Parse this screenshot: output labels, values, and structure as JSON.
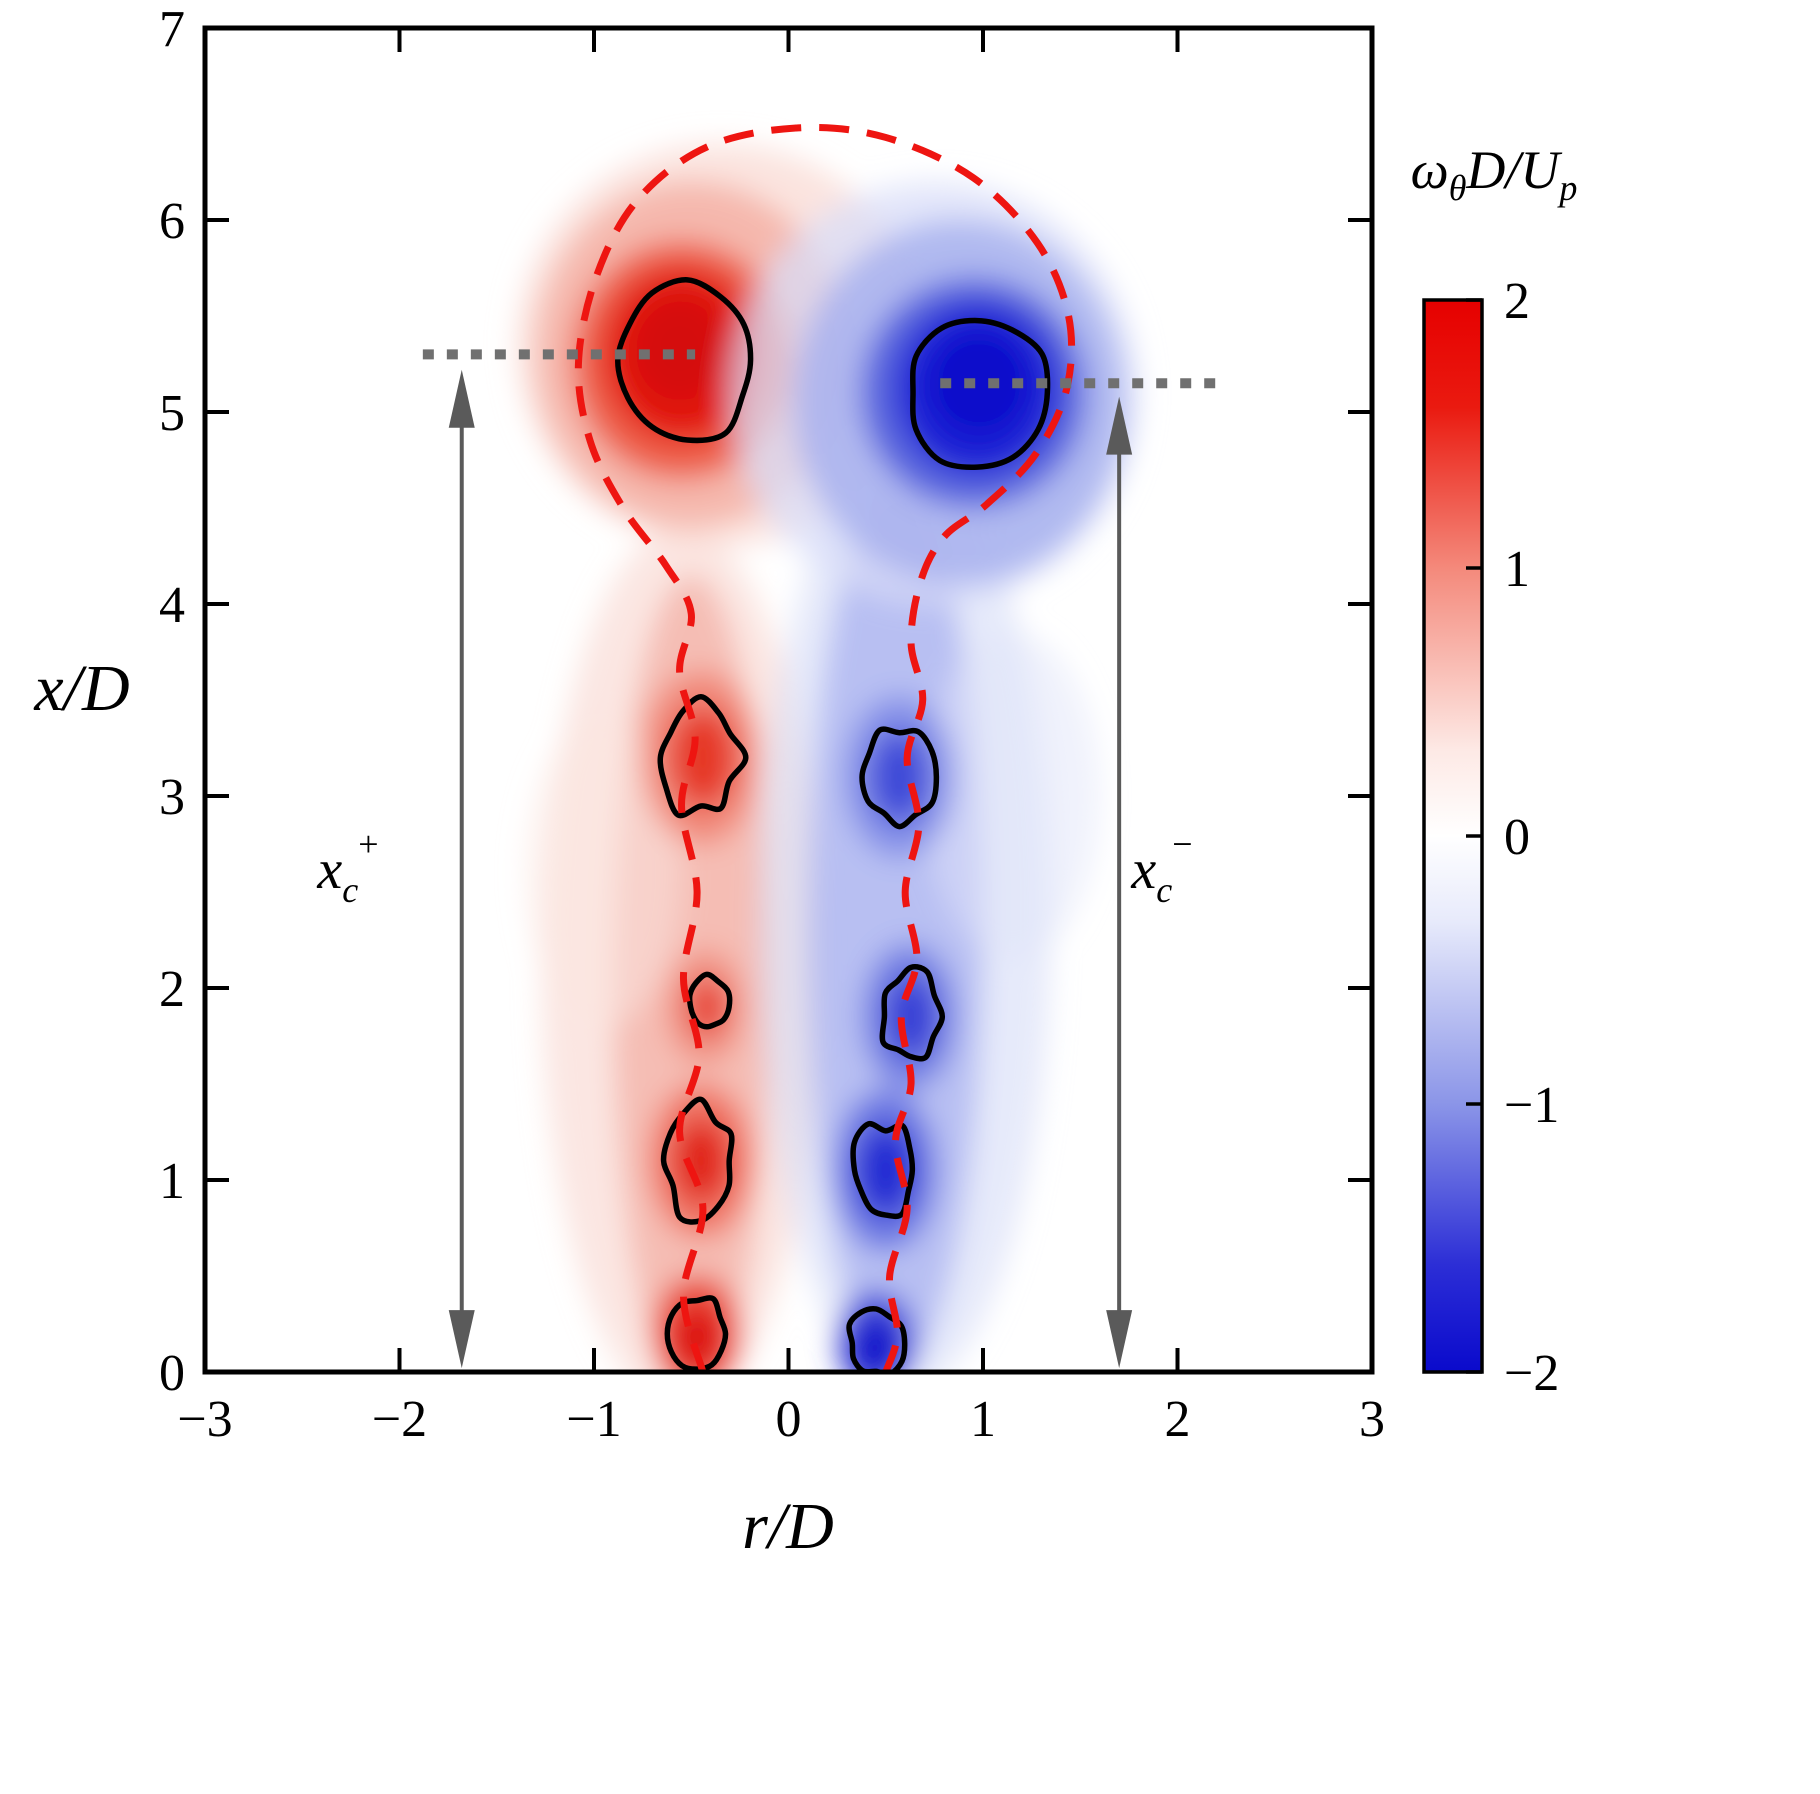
{
  "chart_data": {
    "type": "heatmap",
    "title": "",
    "xlabel": "r/D",
    "ylabel": "x/D",
    "xlim": [
      -3,
      3
    ],
    "ylim": [
      0,
      7
    ],
    "grid": false,
    "x_ticks": [
      {
        "v": -3,
        "label": "−3"
      },
      {
        "v": -2,
        "label": "−2"
      },
      {
        "v": -1,
        "label": "−1"
      },
      {
        "v": 0,
        "label": "0"
      },
      {
        "v": 1,
        "label": "1"
      },
      {
        "v": 2,
        "label": "2"
      },
      {
        "v": 3,
        "label": "3"
      }
    ],
    "y_ticks": [
      {
        "v": 0,
        "label": "0"
      },
      {
        "v": 1,
        "label": "1"
      },
      {
        "v": 2,
        "label": "2"
      },
      {
        "v": 3,
        "label": "3"
      },
      {
        "v": 4,
        "label": "4"
      },
      {
        "v": 5,
        "label": "5"
      },
      {
        "v": 6,
        "label": "6"
      },
      {
        "v": 7,
        "label": "7"
      }
    ],
    "colorbar": {
      "label_text": "ωθD/Up",
      "label_parts": {
        "omega": "ω",
        "theta": "θ",
        "mid": "D/U",
        "sub": "p"
      },
      "min": -2,
      "max": 2,
      "ticks": [
        {
          "v": 2,
          "label": "2"
        },
        {
          "v": 1,
          "label": "1"
        },
        {
          "v": 0,
          "label": "0"
        },
        {
          "v": -1,
          "label": "−1"
        },
        {
          "v": -2,
          "label": "−2"
        }
      ],
      "gradient": [
        {
          "offset": 0.0,
          "color": "#e60000"
        },
        {
          "offset": 0.1,
          "color": "#ea1a10"
        },
        {
          "offset": 0.25,
          "color": "#f4897b"
        },
        {
          "offset": 0.42,
          "color": "#fde9e5"
        },
        {
          "offset": 0.5,
          "color": "#ffffff"
        },
        {
          "offset": 0.58,
          "color": "#e7eafb"
        },
        {
          "offset": 0.75,
          "color": "#8b95e8"
        },
        {
          "offset": 0.9,
          "color": "#2c2ed6"
        },
        {
          "offset": 1.0,
          "color": "#0a0acc"
        }
      ]
    },
    "colors": {
      "positive_peak": "#d50b0b",
      "negative_peak": "#0a0ccb",
      "boundary": "#ee1511",
      "contour": "#000000",
      "annotation_arrow": "#5a5a5a",
      "dotted_line": "#707070"
    },
    "field_blobs": [
      {
        "r": -0.55,
        "x": 2.1,
        "rx": 0.72,
        "ry": 2.3,
        "fill": "#f8d2ca",
        "opacity": 0.55
      },
      {
        "r": -0.5,
        "x": 2.0,
        "rx": 0.4,
        "ry": 2.15,
        "fill": "#f2a296",
        "opacity": 0.6
      },
      {
        "r": -0.95,
        "x": 2.6,
        "rx": 0.4,
        "ry": 0.8,
        "fill": "#fbe7e2",
        "opacity": 0.5
      },
      {
        "r": -0.35,
        "x": 5.35,
        "rx": 1.05,
        "ry": 1.05,
        "fill": "#fadbd4",
        "opacity": 0.75
      },
      {
        "r": -0.5,
        "x": 5.3,
        "rx": 0.8,
        "ry": 0.9,
        "fill": "#f5b2a5",
        "opacity": 0.85
      },
      {
        "r": -0.55,
        "x": 5.27,
        "rx": 0.56,
        "ry": 0.62,
        "fill": "#ee5a45",
        "opacity": 0.95
      },
      {
        "r": -0.55,
        "x": 5.3,
        "rx": 0.4,
        "ry": 0.45,
        "fill": "#e21511",
        "opacity": 1
      },
      {
        "r": -0.56,
        "x": 5.33,
        "rx": 0.24,
        "ry": 0.27,
        "fill": "#d50b0b",
        "opacity": 1
      },
      {
        "r": -0.45,
        "x": 3.2,
        "rx": 0.3,
        "ry": 0.45,
        "fill": "#f08070",
        "opacity": 0.85
      },
      {
        "r": -0.44,
        "x": 3.2,
        "rx": 0.17,
        "ry": 0.26,
        "fill": "#e53020",
        "opacity": 0.9
      },
      {
        "r": -0.43,
        "x": 1.9,
        "rx": 0.2,
        "ry": 0.3,
        "fill": "#f08a7a",
        "opacity": 0.8
      },
      {
        "r": -0.42,
        "x": 1.9,
        "rx": 0.1,
        "ry": 0.15,
        "fill": "#e63525",
        "opacity": 0.9
      },
      {
        "r": -0.45,
        "x": 1.1,
        "rx": 0.26,
        "ry": 0.4,
        "fill": "#ee6a58",
        "opacity": 0.85
      },
      {
        "r": -0.45,
        "x": 1.1,
        "rx": 0.14,
        "ry": 0.22,
        "fill": "#e02015",
        "opacity": 0.95
      },
      {
        "r": -0.47,
        "x": 0.2,
        "rx": 0.22,
        "ry": 0.3,
        "fill": "#ea4233",
        "opacity": 0.9
      },
      {
        "r": -0.47,
        "x": 0.18,
        "rx": 0.13,
        "ry": 0.17,
        "fill": "#dd0f08",
        "opacity": 1
      },
      {
        "r": 0.6,
        "x": 2.35,
        "rx": 0.75,
        "ry": 2.45,
        "fill": "#d2d8f6",
        "opacity": 0.55
      },
      {
        "r": 0.55,
        "x": 2.3,
        "rx": 0.45,
        "ry": 2.3,
        "fill": "#9aa4ec",
        "opacity": 0.6
      },
      {
        "r": 1.15,
        "x": 3.0,
        "rx": 0.45,
        "ry": 0.85,
        "fill": "#e2e6fa",
        "opacity": 0.5
      },
      {
        "r": 0.75,
        "x": 5.1,
        "rx": 1.05,
        "ry": 1.1,
        "fill": "#dadef8",
        "opacity": 0.75
      },
      {
        "r": 0.88,
        "x": 5.05,
        "rx": 0.85,
        "ry": 0.95,
        "fill": "#a8b1ee",
        "opacity": 0.85
      },
      {
        "r": 0.95,
        "x": 5.1,
        "rx": 0.58,
        "ry": 0.6,
        "fill": "#5361dd",
        "opacity": 0.95
      },
      {
        "r": 0.97,
        "x": 5.12,
        "rx": 0.42,
        "ry": 0.45,
        "fill": "#1b22d5",
        "opacity": 1
      },
      {
        "r": 0.98,
        "x": 5.15,
        "rx": 0.26,
        "ry": 0.28,
        "fill": "#0a0ccb",
        "opacity": 1
      },
      {
        "r": 0.57,
        "x": 3.1,
        "rx": 0.28,
        "ry": 0.42,
        "fill": "#7d88e6",
        "opacity": 0.85
      },
      {
        "r": 0.57,
        "x": 3.1,
        "rx": 0.15,
        "ry": 0.24,
        "fill": "#3640d7",
        "opacity": 0.9
      },
      {
        "r": 0.62,
        "x": 1.85,
        "rx": 0.24,
        "ry": 0.38,
        "fill": "#6c78e2",
        "opacity": 0.85
      },
      {
        "r": 0.63,
        "x": 1.85,
        "rx": 0.13,
        "ry": 0.22,
        "fill": "#2d36d5",
        "opacity": 0.9
      },
      {
        "r": 0.5,
        "x": 1.05,
        "rx": 0.26,
        "ry": 0.42,
        "fill": "#5d6ae0",
        "opacity": 0.85
      },
      {
        "r": 0.5,
        "x": 1.05,
        "rx": 0.15,
        "ry": 0.24,
        "fill": "#1f28d2",
        "opacity": 0.95
      },
      {
        "r": 0.45,
        "x": 0.15,
        "rx": 0.2,
        "ry": 0.27,
        "fill": "#3a42d8",
        "opacity": 0.9
      },
      {
        "r": 0.45,
        "x": 0.13,
        "rx": 0.12,
        "ry": 0.15,
        "fill": "#0a0cca",
        "opacity": 1
      }
    ],
    "core_contours": [
      {
        "r": -0.52,
        "x": 5.27,
        "rx": 0.36,
        "ry": 0.4,
        "wobble": 0.1,
        "seed": 7
      },
      {
        "r": 0.97,
        "x": 5.1,
        "rx": 0.36,
        "ry": 0.38,
        "wobble": 0.1,
        "seed": 11
      },
      {
        "r": -0.45,
        "x": 3.2,
        "rx": 0.21,
        "ry": 0.31,
        "wobble": 0.22,
        "seed": 3
      },
      {
        "r": 0.57,
        "x": 3.1,
        "rx": 0.18,
        "ry": 0.25,
        "wobble": 0.15,
        "seed": 5
      },
      {
        "r": -0.42,
        "x": 1.9,
        "rx": 0.11,
        "ry": 0.14,
        "wobble": 0.3,
        "seed": 13
      },
      {
        "r": 0.63,
        "x": 1.85,
        "rx": 0.15,
        "ry": 0.24,
        "wobble": 0.2,
        "seed": 17
      },
      {
        "r": -0.45,
        "x": 1.1,
        "rx": 0.18,
        "ry": 0.28,
        "wobble": 0.22,
        "seed": 19
      },
      {
        "r": 0.5,
        "x": 1.05,
        "rx": 0.16,
        "ry": 0.25,
        "wobble": 0.18,
        "seed": 23
      },
      {
        "r": -0.47,
        "x": 0.2,
        "rx": 0.16,
        "ry": 0.2,
        "wobble": 0.15,
        "seed": 29
      },
      {
        "r": 0.45,
        "x": 0.15,
        "rx": 0.14,
        "ry": 0.17,
        "wobble": 0.15,
        "seed": 31
      }
    ],
    "jet_boundary": {
      "points": [
        [
          -0.44,
          0
        ],
        [
          -0.54,
          0.4
        ],
        [
          -0.44,
          0.85
        ],
        [
          -0.56,
          1.25
        ],
        [
          -0.46,
          1.65
        ],
        [
          -0.54,
          2.05
        ],
        [
          -0.47,
          2.5
        ],
        [
          -0.55,
          2.95
        ],
        [
          -0.48,
          3.3
        ],
        [
          -0.56,
          3.65
        ],
        [
          -0.5,
          3.95
        ],
        [
          -0.63,
          4.2
        ],
        [
          -0.85,
          4.5
        ],
        [
          -1.02,
          4.85
        ],
        [
          -1.08,
          5.25
        ],
        [
          -0.99,
          5.7
        ],
        [
          -0.78,
          6.1
        ],
        [
          -0.42,
          6.38
        ],
        [
          0.05,
          6.48
        ],
        [
          0.5,
          6.43
        ],
        [
          0.95,
          6.22
        ],
        [
          1.28,
          5.88
        ],
        [
          1.44,
          5.5
        ],
        [
          1.43,
          5.12
        ],
        [
          1.27,
          4.78
        ],
        [
          1.02,
          4.52
        ],
        [
          0.8,
          4.35
        ],
        [
          0.68,
          4.12
        ],
        [
          0.63,
          3.8
        ],
        [
          0.69,
          3.5
        ],
        [
          0.61,
          3.2
        ],
        [
          0.67,
          2.85
        ],
        [
          0.6,
          2.5
        ],
        [
          0.66,
          2.15
        ],
        [
          0.58,
          1.85
        ],
        [
          0.63,
          1.5
        ],
        [
          0.55,
          1.2
        ],
        [
          0.61,
          0.85
        ],
        [
          0.52,
          0.5
        ],
        [
          0.56,
          0.2
        ],
        [
          0.5,
          0
        ]
      ]
    },
    "annotations": {
      "xc_plus": {
        "text": "xc+",
        "parts": {
          "base": "x",
          "sub": "c",
          "sup": "+"
        },
        "arrow_r": -1.68,
        "arrow_x_from": 0.02,
        "arrow_x_to": 5.22
      },
      "xc_minus": {
        "text": "xc−",
        "parts": {
          "base": "x",
          "sub": "c",
          "sup": "−"
        },
        "arrow_r": 1.7,
        "arrow_x_from": 0.02,
        "arrow_x_to": 5.08
      },
      "dotted_left": {
        "x": 5.3,
        "r_from": -1.88,
        "r_to": -0.48
      },
      "dotted_right": {
        "x": 5.15,
        "r_from": 0.78,
        "r_to": 2.2
      }
    }
  }
}
